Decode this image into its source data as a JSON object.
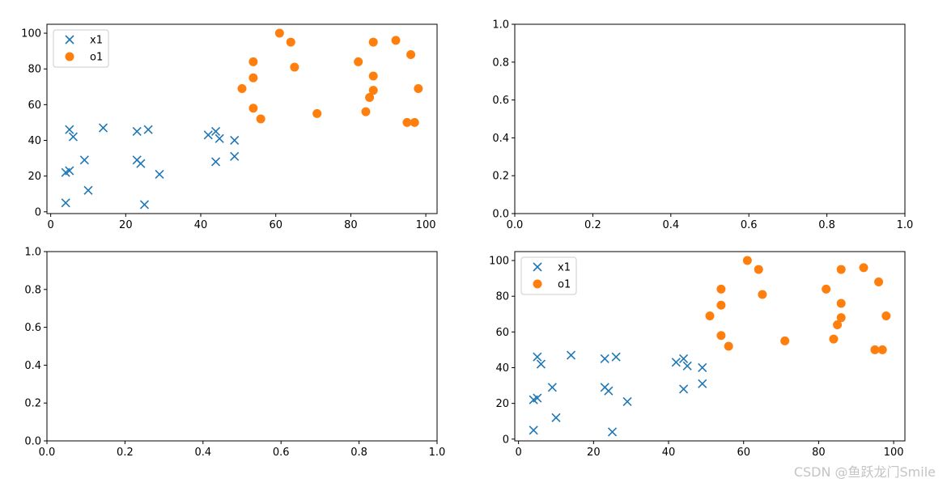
{
  "chart_data": [
    {
      "type": "scatter",
      "panel": "top-left",
      "xlim": [
        -1,
        103
      ],
      "ylim": [
        -1,
        105
      ],
      "xticks": [
        0,
        20,
        40,
        60,
        80,
        100
      ],
      "yticks": [
        0,
        20,
        40,
        60,
        80,
        100
      ],
      "legend": "top-left",
      "grid": false,
      "series": [
        {
          "name": "x1",
          "marker": "x",
          "color": "#1f77b4",
          "points": [
            [
              4,
              5
            ],
            [
              4,
              22
            ],
            [
              5,
              23
            ],
            [
              5,
              46
            ],
            [
              6,
              42
            ],
            [
              9,
              29
            ],
            [
              10,
              12
            ],
            [
              14,
              47
            ],
            [
              23,
              45
            ],
            [
              23,
              29
            ],
            [
              24,
              27
            ],
            [
              25,
              4
            ],
            [
              26,
              46
            ],
            [
              29,
              21
            ],
            [
              42,
              43
            ],
            [
              44,
              45
            ],
            [
              44,
              28
            ],
            [
              45,
              41
            ],
            [
              49,
              40
            ],
            [
              49,
              31
            ]
          ]
        },
        {
          "name": "o1",
          "marker": "o",
          "color": "#ff7f0e",
          "points": [
            [
              51,
              69
            ],
            [
              54,
              84
            ],
            [
              54,
              75
            ],
            [
              54,
              58
            ],
            [
              56,
              52
            ],
            [
              61,
              100
            ],
            [
              64,
              95
            ],
            [
              65,
              81
            ],
            [
              71,
              55
            ],
            [
              82,
              84
            ],
            [
              84,
              56
            ],
            [
              85,
              64
            ],
            [
              86,
              95
            ],
            [
              86,
              76
            ],
            [
              86,
              68
            ],
            [
              92,
              96
            ],
            [
              95,
              50
            ],
            [
              96,
              88
            ],
            [
              97,
              50
            ],
            [
              98,
              69
            ]
          ]
        }
      ]
    },
    {
      "type": "scatter",
      "panel": "top-right",
      "xlim": [
        0,
        1
      ],
      "ylim": [
        0,
        1
      ],
      "xticks": [
        "0.0",
        "0.2",
        "0.4",
        "0.6",
        "0.8",
        "1.0"
      ],
      "yticks": [
        "0.0",
        "0.2",
        "0.4",
        "0.6",
        "0.8",
        "1.0"
      ],
      "grid": false,
      "series": []
    },
    {
      "type": "scatter",
      "panel": "bottom-left",
      "xlim": [
        0,
        1
      ],
      "ylim": [
        0,
        1
      ],
      "xticks": [
        "0.0",
        "0.2",
        "0.4",
        "0.6",
        "0.8",
        "1.0"
      ],
      "yticks": [
        "0.0",
        "0.2",
        "0.4",
        "0.6",
        "0.8",
        "1.0"
      ],
      "grid": false,
      "series": []
    },
    {
      "type": "scatter",
      "panel": "bottom-right",
      "xlim": [
        -1,
        103
      ],
      "ylim": [
        -1,
        105
      ],
      "xticks": [
        0,
        20,
        40,
        60,
        80,
        100
      ],
      "yticks": [
        0,
        20,
        40,
        60,
        80,
        100
      ],
      "legend": "top-left",
      "grid": false,
      "series": [
        {
          "name": "x1",
          "marker": "x",
          "color": "#1f77b4",
          "points": [
            [
              4,
              5
            ],
            [
              4,
              22
            ],
            [
              5,
              23
            ],
            [
              5,
              46
            ],
            [
              6,
              42
            ],
            [
              9,
              29
            ],
            [
              10,
              12
            ],
            [
              14,
              47
            ],
            [
              23,
              45
            ],
            [
              23,
              29
            ],
            [
              24,
              27
            ],
            [
              25,
              4
            ],
            [
              26,
              46
            ],
            [
              29,
              21
            ],
            [
              42,
              43
            ],
            [
              44,
              45
            ],
            [
              44,
              28
            ],
            [
              45,
              41
            ],
            [
              49,
              40
            ],
            [
              49,
              31
            ]
          ]
        },
        {
          "name": "o1",
          "marker": "o",
          "color": "#ff7f0e",
          "points": [
            [
              51,
              69
            ],
            [
              54,
              84
            ],
            [
              54,
              75
            ],
            [
              54,
              58
            ],
            [
              56,
              52
            ],
            [
              61,
              100
            ],
            [
              64,
              95
            ],
            [
              65,
              81
            ],
            [
              71,
              55
            ],
            [
              82,
              84
            ],
            [
              84,
              56
            ],
            [
              85,
              64
            ],
            [
              86,
              95
            ],
            [
              86,
              76
            ],
            [
              86,
              68
            ],
            [
              92,
              96
            ],
            [
              95,
              50
            ],
            [
              96,
              88
            ],
            [
              97,
              50
            ],
            [
              98,
              69
            ]
          ]
        }
      ]
    }
  ],
  "watermark": "CSDN @鱼跃龙门Smile"
}
